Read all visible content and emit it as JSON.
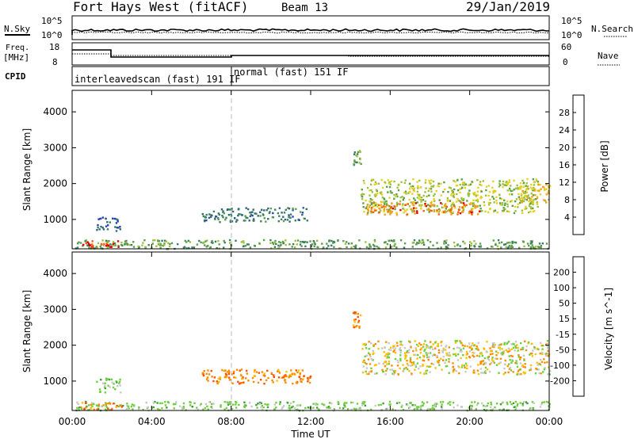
{
  "header": {
    "radar": "Fort Hays West (fitACF)",
    "beam": "Beam 13",
    "date": "29/Jan/2019"
  },
  "status_panel": {
    "nsky_label": "N.Sky",
    "nsearch_label": "N.Search",
    "noise_left_ticks": [
      "10^5",
      "10^0"
    ],
    "noise_right_ticks": [
      "10^5",
      "10^0"
    ],
    "freq_label": "Freq.",
    "freq_unit": "[MHz]",
    "freq_ticks": [
      "18",
      "8"
    ],
    "nave_label": "Nave",
    "nave_ticks": [
      "60",
      "0"
    ],
    "cpid_label": "CPID",
    "cpid_segments": [
      {
        "name": "interleavedscan (fast) 191 IF",
        "start_hour": 0,
        "end_hour": 8
      },
      {
        "name": "normal (fast) 151 IF",
        "start_hour": 8,
        "end_hour": 24
      }
    ]
  },
  "colors": {
    "power": [
      "#0000ee",
      "#2244bb",
      "#33667f",
      "#3a8060",
      "#5aa04a",
      "#a0c040",
      "#e8d020",
      "#f0a020",
      "#f06010",
      "#e00000"
    ],
    "velocity": [
      "#ff0000",
      "#ff5000",
      "#ff8c00",
      "#ffc000",
      "#c8c8c8",
      "#6fcf3f",
      "#3c9d3c",
      "#2f6f8f",
      "#1a3fbf",
      "#000099"
    ]
  },
  "chart_data": [
    {
      "type": "heatmap",
      "quantity": "Power",
      "xlabel": "Time UT",
      "ylabel": "Slant Range [km]",
      "xlim_hours": [
        0,
        24
      ],
      "ylim_km": [
        180,
        4600
      ],
      "x_ticks": [
        "00:00",
        "04:00",
        "08:00",
        "12:00",
        "16:00",
        "20:00",
        "00:00"
      ],
      "y_ticks": [
        1000,
        2000,
        3000,
        4000
      ],
      "colorbar": {
        "label": "Power [dB]",
        "ticks": [
          4,
          8,
          12,
          16,
          20,
          24,
          28
        ]
      },
      "echo_regions": [
        {
          "t0": 0.1,
          "t1": 24.0,
          "r0": 200,
          "r1": 450,
          "value": 14
        },
        {
          "t0": 0.3,
          "t1": 2.3,
          "r0": 220,
          "r1": 420,
          "value": 30
        },
        {
          "t0": 1.2,
          "t1": 2.4,
          "r0": 700,
          "r1": 1100,
          "value": 8
        },
        {
          "t0": 6.5,
          "t1": 11.8,
          "r0": 950,
          "r1": 1350,
          "value": 10
        },
        {
          "t0": 14.1,
          "t1": 14.5,
          "r0": 2500,
          "r1": 2950,
          "value": 14
        },
        {
          "t0": 14.5,
          "t1": 23.4,
          "r0": 1200,
          "r1": 2150,
          "value": 18
        },
        {
          "t0": 14.8,
          "t1": 20.5,
          "r0": 1150,
          "r1": 1500,
          "value": 26
        },
        {
          "t0": 22.3,
          "t1": 24.0,
          "r0": 1500,
          "r1": 2000,
          "value": 22
        }
      ]
    },
    {
      "type": "heatmap",
      "quantity": "Velocity",
      "xlabel": "Time UT",
      "ylabel": "Slant Range [km]",
      "xlim_hours": [
        0,
        24
      ],
      "ylim_km": [
        180,
        4600
      ],
      "x_ticks": [
        "00:00",
        "04:00",
        "08:00",
        "12:00",
        "16:00",
        "20:00",
        "00:00"
      ],
      "y_ticks": [
        1000,
        2000,
        3000,
        4000
      ],
      "colorbar": {
        "label": "Velocity [m s^-1]",
        "ticks": [
          200,
          100,
          50,
          15,
          -15,
          -50,
          -100,
          -200
        ]
      },
      "echo_regions": [
        {
          "t0": 0.1,
          "t1": 24.0,
          "r0": 200,
          "r1": 450,
          "value": 30
        },
        {
          "t0": 0.3,
          "t1": 2.5,
          "r0": 230,
          "r1": 420,
          "value": -40
        },
        {
          "t0": 1.2,
          "t1": 2.4,
          "r0": 700,
          "r1": 1100,
          "value": 30
        },
        {
          "t0": 6.5,
          "t1": 12.0,
          "r0": 950,
          "r1": 1350,
          "value": -40
        },
        {
          "t0": 14.1,
          "t1": 14.5,
          "r0": 2500,
          "r1": 2950,
          "value": -40
        },
        {
          "t0": 14.5,
          "t1": 24.0,
          "r0": 1200,
          "r1": 2150,
          "value": 0
        }
      ]
    }
  ]
}
